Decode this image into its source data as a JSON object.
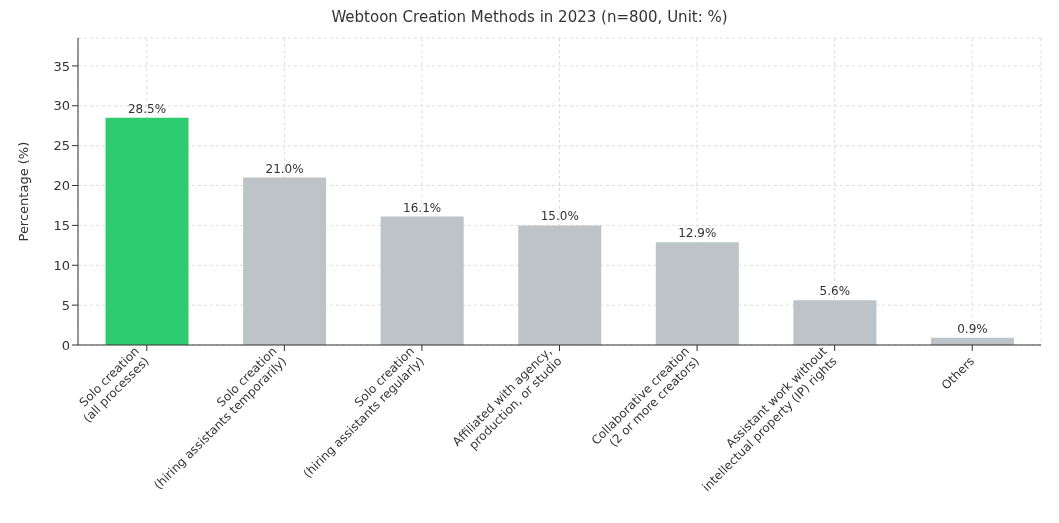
{
  "chart_data": {
    "type": "bar",
    "title": "Webtoon Creation Methods in 2023 (n=800, Unit: %)",
    "ylabel": "Percentage (%)",
    "categories": [
      "Solo creation\n(all processes)",
      "Solo creation\n(hiring assistants temporarily)",
      "Solo creation\n(hiring assistants regularly)",
      "Affiliated with agency,\nproduction, or studio",
      "Collaborative creation\n(2 or more creators)",
      "Assistant work without\nintellectual property (IP) rights",
      "Others"
    ],
    "values": [
      28.5,
      21.0,
      16.1,
      15.0,
      12.9,
      5.6,
      0.9
    ],
    "colors": [
      "#2ecc71",
      "#bdc3c7",
      "#bdc3c7",
      "#bdc3c7",
      "#bdc3c7",
      "#bdc3c7",
      "#bdc3c7"
    ],
    "value_labels": [
      "28.5%",
      "21.0%",
      "16.1%",
      "15.0%",
      "12.9%",
      "5.6%",
      "0.9%"
    ],
    "ylim": [
      0,
      38.5
    ],
    "yticks": [
      0,
      5,
      10,
      15,
      20,
      25,
      30,
      35
    ],
    "grid": true
  }
}
